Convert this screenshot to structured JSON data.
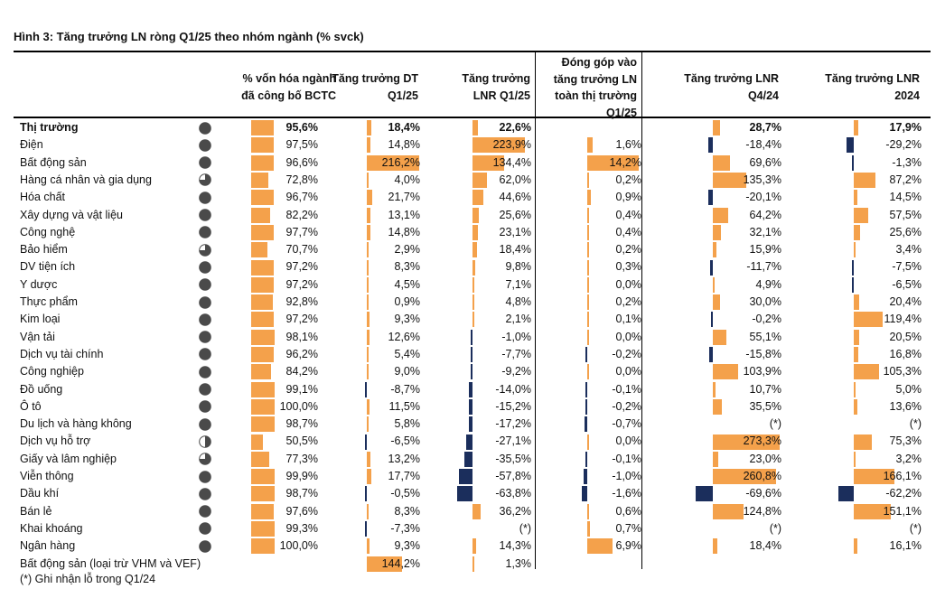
{
  "title": "Hình 3: Tăng trưởng LN ròng Q1/25 theo nhóm ngành (% svck)",
  "headers": {
    "coverage": [
      "% vốn hóa ngành",
      "đã công bố BCTC"
    ],
    "rev": [
      "Tăng trưởng DT",
      "Q1/25"
    ],
    "np": [
      "Tăng trưởng",
      "LNR Q1/25"
    ],
    "contrib": [
      "Đóng góp vào",
      "tăng trưởng LN",
      "toàn thị trường",
      "Q1/25"
    ],
    "q4": [
      "Tăng trưởng LNR",
      "Q4/24"
    ],
    "y24": [
      "Tăng trưởng LNR",
      "2024"
    ]
  },
  "colors": {
    "positive": "#f4a14b",
    "negative": "#1b2e5c",
    "pie": "#4a4a4a"
  },
  "rows": [
    {
      "name": "Thị trường",
      "bold": true,
      "pie": 1,
      "cov": "95,6%",
      "cov_v": 95.6,
      "rev": "18,4%",
      "rev_v": 18.4,
      "np": "22,6%",
      "np_v": 22.6,
      "contrib": "",
      "contrib_v": null,
      "q4": "28,7%",
      "q4_v": 28.7,
      "y24": "17,9%",
      "y24_v": 17.9
    },
    {
      "name": "Điện",
      "pie": 1,
      "cov": "97,5%",
      "cov_v": 97.5,
      "rev": "14,8%",
      "rev_v": 14.8,
      "np": "223,9%",
      "np_v": 223.9,
      "contrib": "1,6%",
      "contrib_v": 1.6,
      "q4": "-18,4%",
      "q4_v": -18.4,
      "y24": "-29,2%",
      "y24_v": -29.2
    },
    {
      "name": "Bất động sản",
      "pie": 1,
      "cov": "96,6%",
      "cov_v": 96.6,
      "rev": "216,2%",
      "rev_v": 216.2,
      "np": "134,4%",
      "np_v": 134.4,
      "contrib": "14,2%",
      "contrib_v": 14.2,
      "q4": "69,6%",
      "q4_v": 69.6,
      "y24": "-1,3%",
      "y24_v": -1.3
    },
    {
      "name": "Hàng cá nhân và gia dụng",
      "pie": 0.75,
      "cov": "72,8%",
      "cov_v": 72.8,
      "rev": "4,0%",
      "rev_v": 4.0,
      "np": "62,0%",
      "np_v": 62.0,
      "contrib": "0,2%",
      "contrib_v": 0.2,
      "q4": "135,3%",
      "q4_v": 135.3,
      "y24": "87,2%",
      "y24_v": 87.2
    },
    {
      "name": "Hóa chất",
      "pie": 1,
      "cov": "96,7%",
      "cov_v": 96.7,
      "rev": "21,7%",
      "rev_v": 21.7,
      "np": "44,6%",
      "np_v": 44.6,
      "contrib": "0,9%",
      "contrib_v": 0.9,
      "q4": "-20,1%",
      "q4_v": -20.1,
      "y24": "14,5%",
      "y24_v": 14.5
    },
    {
      "name": "Xây dựng và vật liệu",
      "pie": 1,
      "cov": "82,2%",
      "cov_v": 82.2,
      "rev": "13,1%",
      "rev_v": 13.1,
      "np": "25,6%",
      "np_v": 25.6,
      "contrib": "0,4%",
      "contrib_v": 0.4,
      "q4": "64,2%",
      "q4_v": 64.2,
      "y24": "57,5%",
      "y24_v": 57.5
    },
    {
      "name": "Công nghệ",
      "pie": 1,
      "cov": "97,7%",
      "cov_v": 97.7,
      "rev": "14,8%",
      "rev_v": 14.8,
      "np": "23,1%",
      "np_v": 23.1,
      "contrib": "0,4%",
      "contrib_v": 0.4,
      "q4": "32,1%",
      "q4_v": 32.1,
      "y24": "25,6%",
      "y24_v": 25.6
    },
    {
      "name": "Bảo hiểm",
      "pie": 0.75,
      "cov": "70,7%",
      "cov_v": 70.7,
      "rev": "2,9%",
      "rev_v": 2.9,
      "np": "18,4%",
      "np_v": 18.4,
      "contrib": "0,2%",
      "contrib_v": 0.2,
      "q4": "15,9%",
      "q4_v": 15.9,
      "y24": "3,4%",
      "y24_v": 3.4
    },
    {
      "name": "DV tiện ích",
      "pie": 1,
      "cov": "97,2%",
      "cov_v": 97.2,
      "rev": "8,3%",
      "rev_v": 8.3,
      "np": "9,8%",
      "np_v": 9.8,
      "contrib": "0,3%",
      "contrib_v": 0.3,
      "q4": "-11,7%",
      "q4_v": -11.7,
      "y24": "-7,5%",
      "y24_v": -7.5
    },
    {
      "name": "Y dược",
      "pie": 1,
      "cov": "97,2%",
      "cov_v": 97.2,
      "rev": "4,5%",
      "rev_v": 4.5,
      "np": "7,1%",
      "np_v": 7.1,
      "contrib": "0,0%",
      "contrib_v": 0.0,
      "q4": "4,9%",
      "q4_v": 4.9,
      "y24": "-6,5%",
      "y24_v": -6.5
    },
    {
      "name": "Thực phẩm",
      "pie": 1,
      "cov": "92,8%",
      "cov_v": 92.8,
      "rev": "0,9%",
      "rev_v": 0.9,
      "np": "4,8%",
      "np_v": 4.8,
      "contrib": "0,2%",
      "contrib_v": 0.2,
      "q4": "30,0%",
      "q4_v": 30.0,
      "y24": "20,4%",
      "y24_v": 20.4
    },
    {
      "name": "Kim loại",
      "pie": 1,
      "cov": "97,2%",
      "cov_v": 97.2,
      "rev": "9,3%",
      "rev_v": 9.3,
      "np": "2,1%",
      "np_v": 2.1,
      "contrib": "0,1%",
      "contrib_v": 0.1,
      "q4": "-0,2%",
      "q4_v": -0.2,
      "y24": "119,4%",
      "y24_v": 119.4
    },
    {
      "name": "Vận tải",
      "pie": 1,
      "cov": "98,1%",
      "cov_v": 98.1,
      "rev": "12,6%",
      "rev_v": 12.6,
      "np": "-1,0%",
      "np_v": -1.0,
      "contrib": "0,0%",
      "contrib_v": 0.0,
      "q4": "55,1%",
      "q4_v": 55.1,
      "y24": "20,5%",
      "y24_v": 20.5
    },
    {
      "name": "Dịch vụ tài chính",
      "pie": 1,
      "cov": "96,2%",
      "cov_v": 96.2,
      "rev": "5,4%",
      "rev_v": 5.4,
      "np": "-7,7%",
      "np_v": -7.7,
      "contrib": "-0,2%",
      "contrib_v": -0.2,
      "q4": "-15,8%",
      "q4_v": -15.8,
      "y24": "16,8%",
      "y24_v": 16.8
    },
    {
      "name": "Công nghiệp",
      "pie": 1,
      "cov": "84,2%",
      "cov_v": 84.2,
      "rev": "9,0%",
      "rev_v": 9.0,
      "np": "-9,2%",
      "np_v": -9.2,
      "contrib": "0,0%",
      "contrib_v": 0.0,
      "q4": "103,9%",
      "q4_v": 103.9,
      "y24": "105,3%",
      "y24_v": 105.3
    },
    {
      "name": "Đồ uống",
      "pie": 1,
      "cov": "99,1%",
      "cov_v": 99.1,
      "rev": "-8,7%",
      "rev_v": -8.7,
      "np": "-14,0%",
      "np_v": -14.0,
      "contrib": "-0,1%",
      "contrib_v": -0.1,
      "q4": "10,7%",
      "q4_v": 10.7,
      "y24": "5,0%",
      "y24_v": 5.0
    },
    {
      "name": "Ô tô",
      "pie": 1,
      "cov": "100,0%",
      "cov_v": 100.0,
      "rev": "11,5%",
      "rev_v": 11.5,
      "np": "-15,2%",
      "np_v": -15.2,
      "contrib": "-0,2%",
      "contrib_v": -0.2,
      "q4": "35,5%",
      "q4_v": 35.5,
      "y24": "13,6%",
      "y24_v": 13.6
    },
    {
      "name": "Du lịch và hàng không",
      "pie": 1,
      "cov": "98,7%",
      "cov_v": 98.7,
      "rev": "5,8%",
      "rev_v": 5.8,
      "np": "-17,2%",
      "np_v": -17.2,
      "contrib": "-0,7%",
      "contrib_v": -0.7,
      "q4": "(*)",
      "q4_v": null,
      "y24": "(*)",
      "y24_v": null
    },
    {
      "name": "Dịch vụ hỗ trợ",
      "pie": 0.5,
      "cov": "50,5%",
      "cov_v": 50.5,
      "rev": "-6,5%",
      "rev_v": -6.5,
      "np": "-27,1%",
      "np_v": -27.1,
      "contrib": "0,0%",
      "contrib_v": 0.0,
      "q4": "273,3%",
      "q4_v": 273.3,
      "y24": "75,3%",
      "y24_v": 75.3
    },
    {
      "name": "Giấy và lâm nghiệp",
      "pie": 0.75,
      "cov": "77,3%",
      "cov_v": 77.3,
      "rev": "13,2%",
      "rev_v": 13.2,
      "np": "-35,5%",
      "np_v": -35.5,
      "contrib": "-0,1%",
      "contrib_v": -0.1,
      "q4": "23,0%",
      "q4_v": 23.0,
      "y24": "3,2%",
      "y24_v": 3.2
    },
    {
      "name": "Viễn thông",
      "pie": 1,
      "cov": "99,9%",
      "cov_v": 99.9,
      "rev": "17,7%",
      "rev_v": 17.7,
      "np": "-57,8%",
      "np_v": -57.8,
      "contrib": "-1,0%",
      "contrib_v": -1.0,
      "q4": "260,8%",
      "q4_v": 260.8,
      "y24": "166,1%",
      "y24_v": 166.1
    },
    {
      "name": "Dầu khí",
      "pie": 1,
      "cov": "98,7%",
      "cov_v": 98.7,
      "rev": "-0,5%",
      "rev_v": -0.5,
      "np": "-63,8%",
      "np_v": -63.8,
      "contrib": "-1,6%",
      "contrib_v": -1.6,
      "q4": "-69,6%",
      "q4_v": -69.6,
      "y24": "-62,2%",
      "y24_v": -62.2
    },
    {
      "name": "Bán lẻ",
      "pie": 1,
      "cov": "97,6%",
      "cov_v": 97.6,
      "rev": "8,3%",
      "rev_v": 8.3,
      "np": "36,2%",
      "np_v": 36.2,
      "contrib": "0,6%",
      "contrib_v": 0.6,
      "q4": "124,8%",
      "q4_v": 124.8,
      "y24": "151,1%",
      "y24_v": 151.1
    },
    {
      "name": "Khai khoáng",
      "pie": 1,
      "cov": "99,3%",
      "cov_v": 99.3,
      "rev": "-7,3%",
      "rev_v": -7.3,
      "np": "(*)",
      "np_v": null,
      "contrib": "0,7%",
      "contrib_v": 0.7,
      "q4": "(*)",
      "q4_v": null,
      "y24": "(*)",
      "y24_v": null
    },
    {
      "name": "Ngân hàng",
      "pie": 1,
      "cov": "100,0%",
      "cov_v": 100.0,
      "rev": "9,3%",
      "rev_v": 9.3,
      "np": "14,3%",
      "np_v": 14.3,
      "contrib": "6,9%",
      "contrib_v": 6.9,
      "q4": "18,4%",
      "q4_v": 18.4,
      "y24": "16,1%",
      "y24_v": 16.1
    },
    {
      "name": "Bất động sản (loại trừ VHM và VEF)",
      "pie": null,
      "cov": "",
      "cov_v": null,
      "rev": "144,2%",
      "rev_v": 144.2,
      "np": "1,3%",
      "np_v": 1.3,
      "contrib": "",
      "contrib_v": null,
      "q4": "",
      "q4_v": null,
      "y24": "",
      "y24_v": null
    }
  ],
  "footnote": "(*) Ghi nhận lỗ trong Q1/24"
}
